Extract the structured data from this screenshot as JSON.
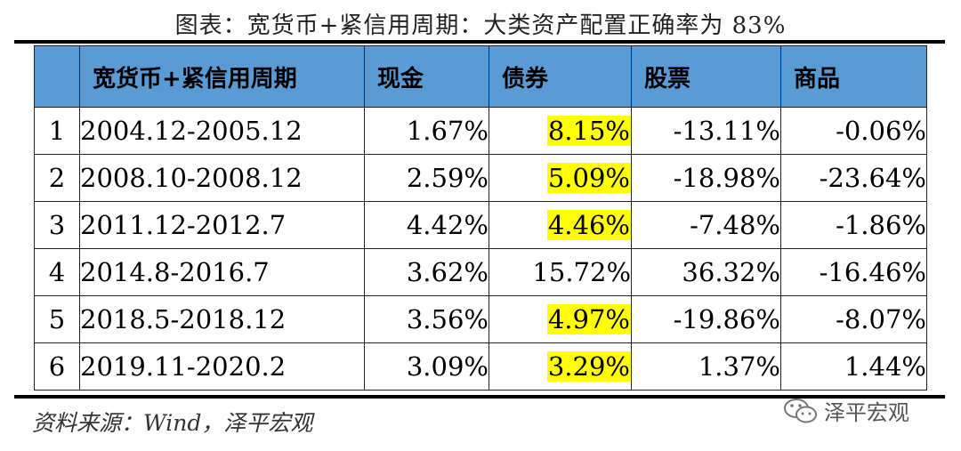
{
  "title": "图表：宽货币+紧信用周期：大类资产配置正确率为 83%",
  "table": {
    "headers": [
      "",
      "宽货币+紧信用周期",
      "现金",
      "债券",
      "股票",
      "商品"
    ],
    "rows": [
      {
        "idx": "1",
        "period": "2004.12-2005.12",
        "cash": "1.67%",
        "bond": "8.15%",
        "stock": "-13.11%",
        "commodity": "-0.06%",
        "bond_highlight": true
      },
      {
        "idx": "2",
        "period": "2008.10-2008.12",
        "cash": "2.59%",
        "bond": "5.09%",
        "stock": "-18.98%",
        "commodity": "-23.64%",
        "bond_highlight": true
      },
      {
        "idx": "3",
        "period": "2011.12-2012.7",
        "cash": "4.42%",
        "bond": "4.46%",
        "stock": "-7.48%",
        "commodity": "-1.86%",
        "bond_highlight": true
      },
      {
        "idx": "4",
        "period": "2014.8-2016.7",
        "cash": "3.62%",
        "bond": "15.72%",
        "stock": "36.32%",
        "commodity": "-16.46%",
        "bond_highlight": false
      },
      {
        "idx": "5",
        "period": "2018.5-2018.12",
        "cash": "3.56%",
        "bond": "4.97%",
        "stock": "-19.86%",
        "commodity": "-8.07%",
        "bond_highlight": true
      },
      {
        "idx": "6",
        "period": "2019.11-2020.2",
        "cash": "3.09%",
        "bond": "3.29%",
        "stock": "1.37%",
        "commodity": "1.44%",
        "bond_highlight": true
      }
    ]
  },
  "source": "资料来源：Wind，泽平宏观",
  "watermark": {
    "text": "泽平宏观",
    "icon": "wechat-icon"
  },
  "colors": {
    "header_bg": "#5b9bd5",
    "highlight": "#ffff00"
  }
}
